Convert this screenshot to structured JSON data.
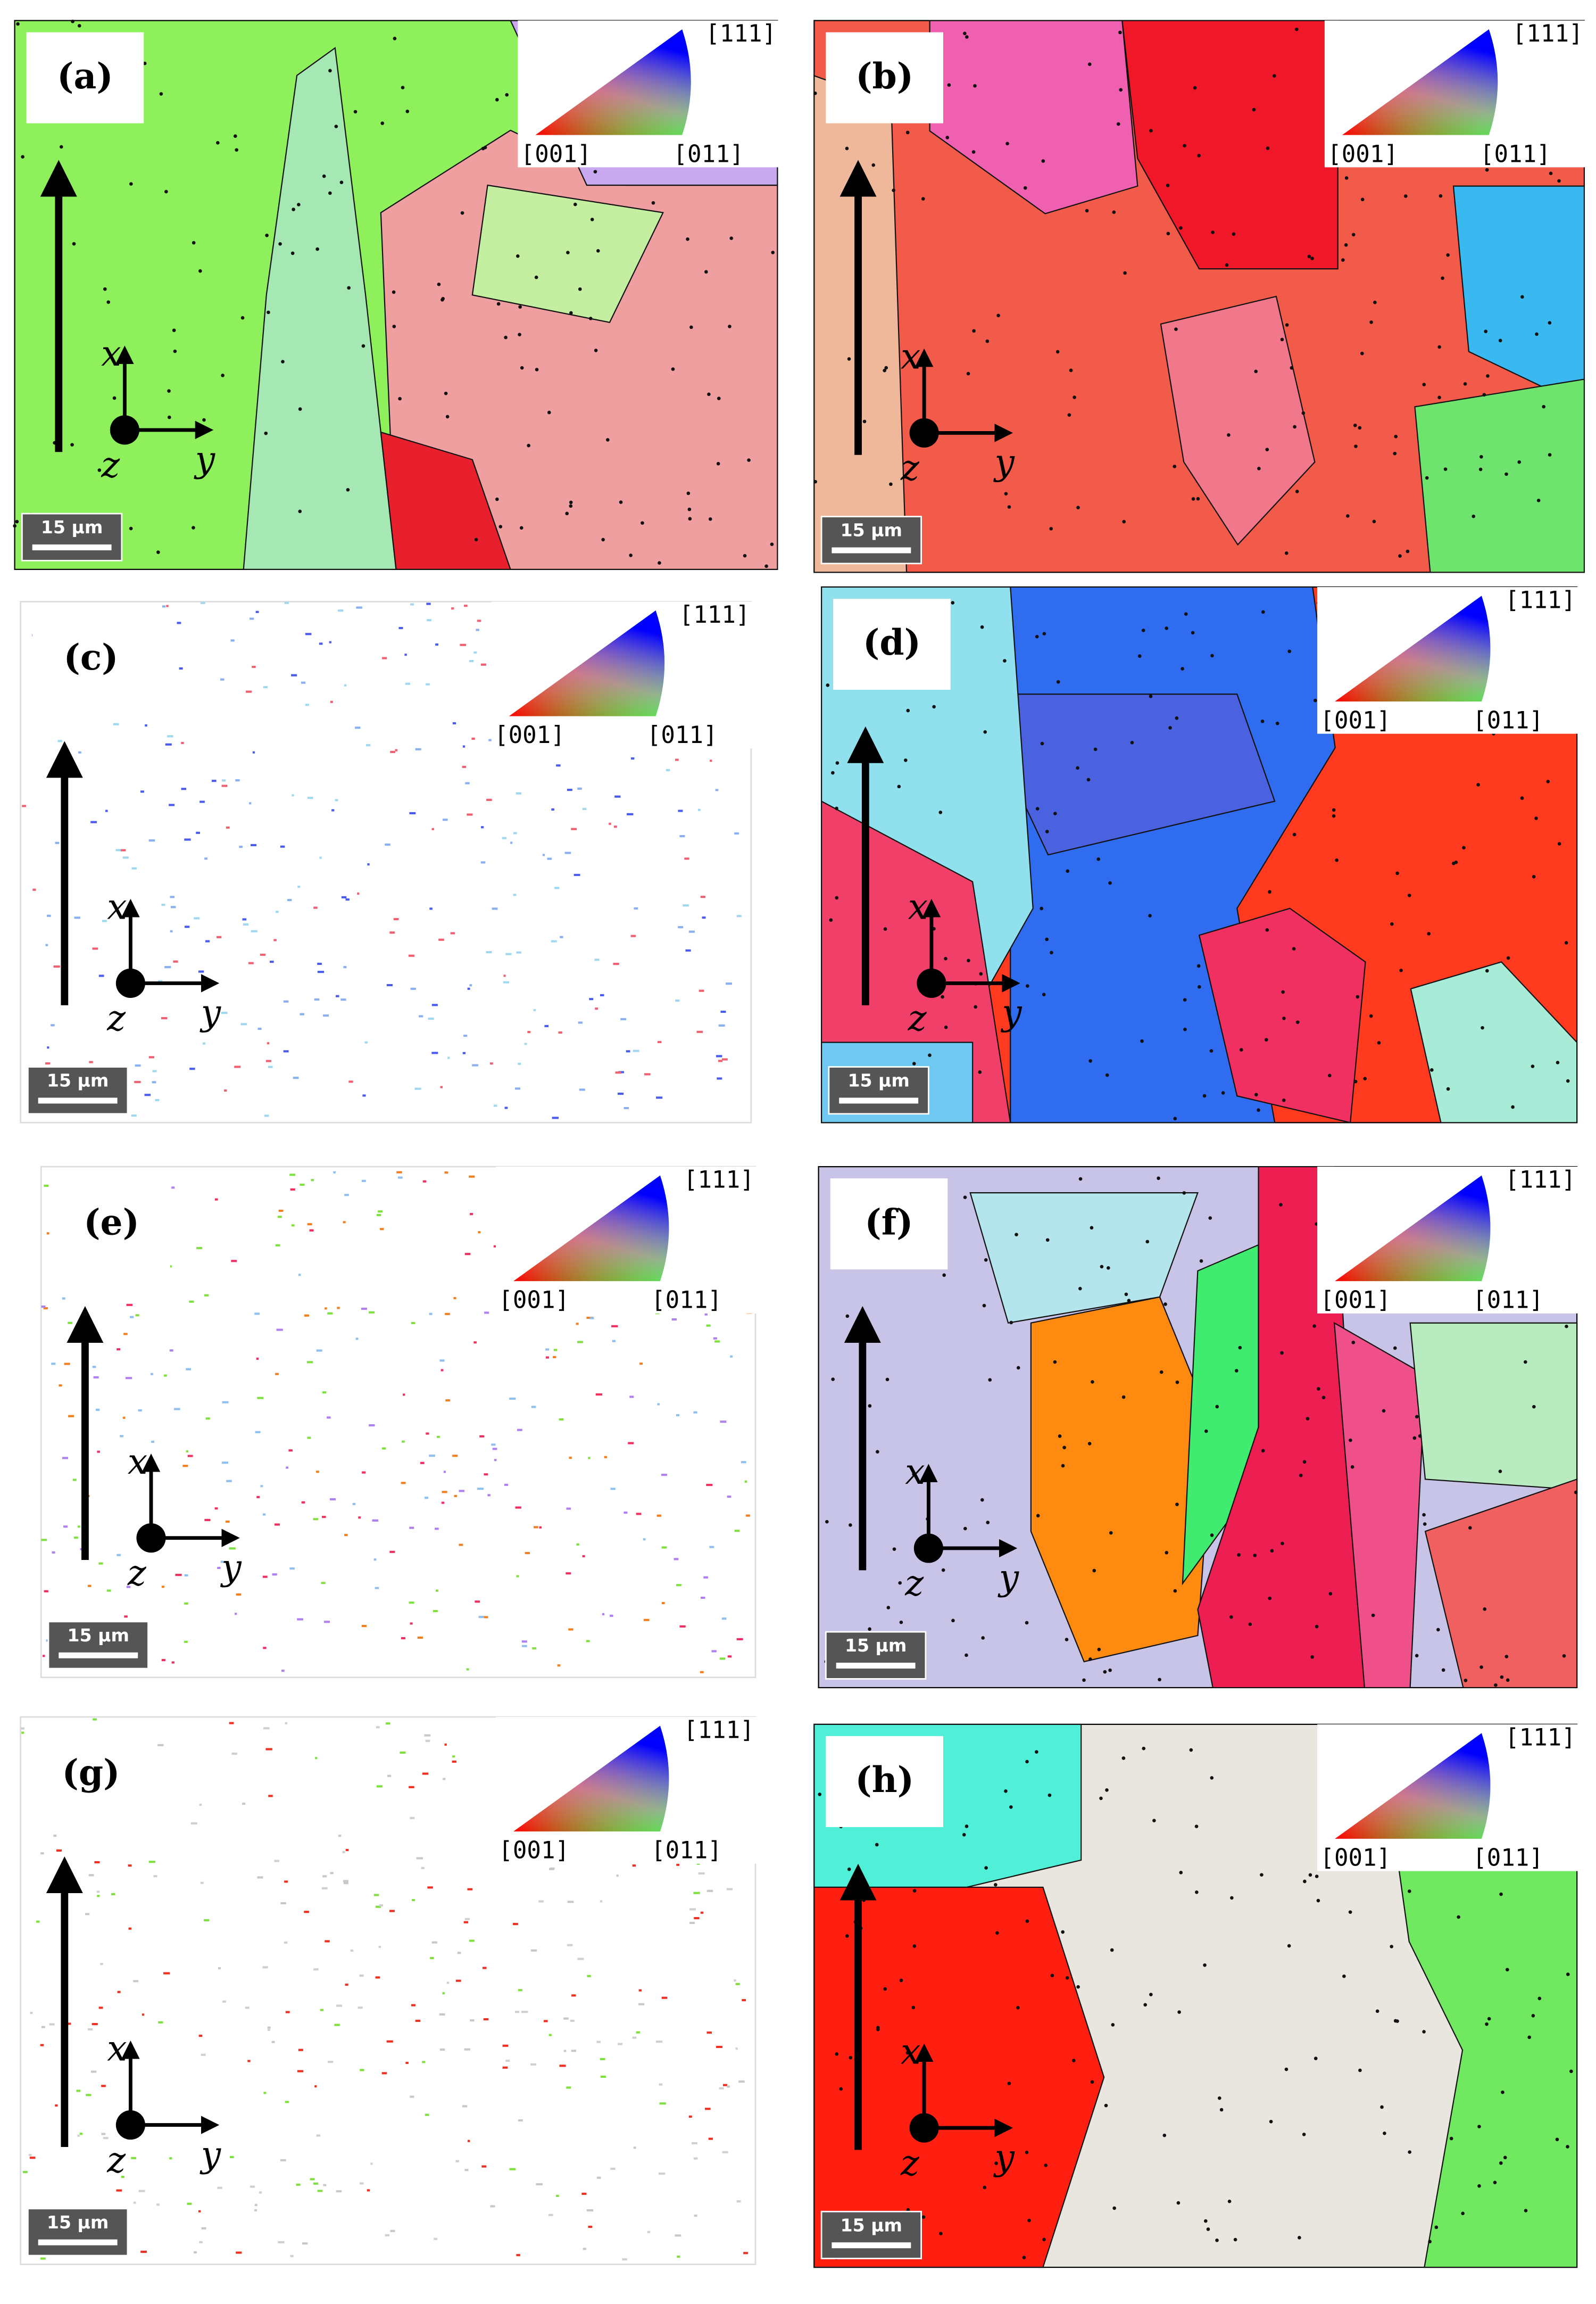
{
  "panels": [
    {
      "label": "(a)",
      "ipf_top": "[111]",
      "ipf_left": "[001]",
      "ipf_right": "[011]",
      "scale_bar": "15 μm",
      "axis_x": "x",
      "axis_y": "y",
      "axis_z": "z"
    },
    {
      "label": "(b)",
      "ipf_top": "[111]",
      "ipf_left": "[001]",
      "ipf_right": "[011]",
      "scale_bar": "15 μm",
      "axis_x": "x",
      "axis_y": "y",
      "axis_z": "z"
    },
    {
      "label": "(c)",
      "ipf_top": "[111]",
      "ipf_left": "[001]",
      "ipf_right": "[011]",
      "scale_bar": "15 μm",
      "axis_x": "x",
      "axis_y": "y",
      "axis_z": "z"
    },
    {
      "label": "(d)",
      "ipf_top": "[111]",
      "ipf_left": "[001]",
      "ipf_right": "[011]",
      "scale_bar": "15 μm",
      "axis_x": "x",
      "axis_y": "y",
      "axis_z": "z"
    },
    {
      "label": "(e)",
      "ipf_top": "[111]",
      "ipf_left": "[001]",
      "ipf_right": "[011]",
      "scale_bar": "15 μm",
      "axis_x": "x",
      "axis_y": "y",
      "axis_z": "z"
    },
    {
      "label": "(f)",
      "ipf_top": "[111]",
      "ipf_left": "[001]",
      "ipf_right": "[011]",
      "scale_bar": "15 μm",
      "axis_x": "x",
      "axis_y": "y",
      "axis_z": "z"
    },
    {
      "label": "(g)",
      "ipf_top": "[111]",
      "ipf_left": "[001]",
      "ipf_right": "[011]",
      "scale_bar": "15 μm",
      "axis_x": "x",
      "axis_y": "y",
      "axis_z": "z"
    },
    {
      "label": "(h)",
      "ipf_top": "[111]",
      "ipf_left": "[001]",
      "ipf_right": "[011]",
      "scale_bar": "15 μm",
      "axis_x": "x",
      "axis_y": "y",
      "axis_z": "z"
    }
  ]
}
